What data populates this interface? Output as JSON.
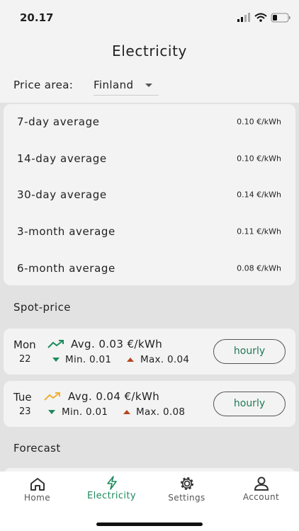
{
  "status_bar": {
    "time": "20.17"
  },
  "header": {
    "title": "Electricity"
  },
  "price_area": {
    "label": "Price area:",
    "value": "Finland"
  },
  "averages": [
    {
      "label": "7-day average",
      "value": "0.10 €/kWh"
    },
    {
      "label": "14-day average",
      "value": "0.10 €/kWh"
    },
    {
      "label": "30-day average",
      "value": "0.14 €/kWh"
    },
    {
      "label": "3-month average",
      "value": "0.11 €/kWh"
    },
    {
      "label": "6-month average",
      "value": "0.08 €/kWh"
    }
  ],
  "spot_price": {
    "title": "Spot-price",
    "days": [
      {
        "weekday": "Mon",
        "date": "22",
        "avg": "Avg. 0.03 €/kWh",
        "min": "Min. 0.01",
        "max": "Max. 0.04",
        "button": "hourly"
      },
      {
        "weekday": "Tue",
        "date": "23",
        "avg": "Avg. 0.04 €/kWh",
        "min": "Min. 0.01",
        "max": "Max. 0.08",
        "button": "hourly"
      }
    ]
  },
  "forecast": {
    "title": "Forecast"
  },
  "nav": [
    {
      "label": "Home"
    },
    {
      "label": "Electricity"
    },
    {
      "label": "Settings"
    },
    {
      "label": "Account"
    }
  ]
}
